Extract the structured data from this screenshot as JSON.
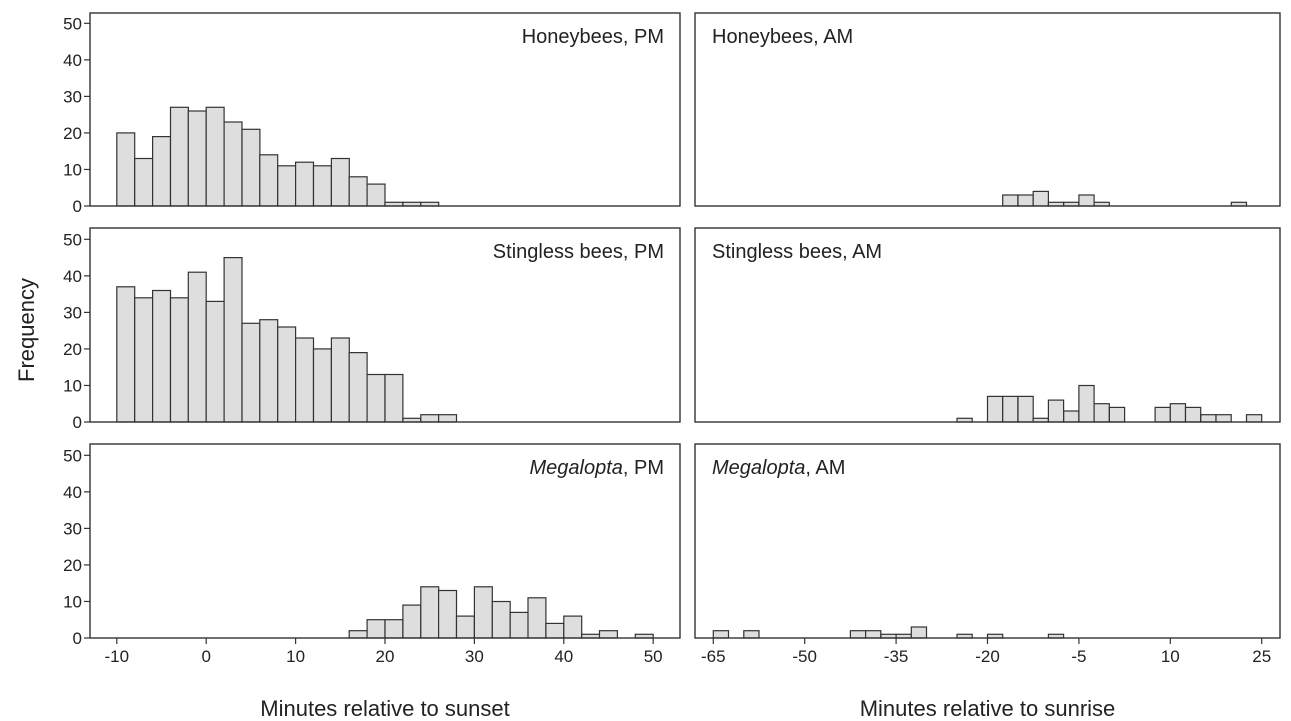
{
  "y_axis_title": "Frequency",
  "chart_data": [
    {
      "type": "bar",
      "label_parts": [
        "Honeybees, PM"
      ],
      "xlabel": "",
      "ylabel": "Frequency",
      "xlim": [
        -13,
        53
      ],
      "ylim": [
        0,
        52
      ],
      "bin_width": 2,
      "x": [
        -9,
        -7,
        -5,
        -3,
        -1,
        1,
        3,
        5,
        7,
        9,
        11,
        13,
        15,
        17,
        19,
        21,
        23,
        25
      ],
      "values": [
        20,
        13,
        19,
        27,
        26,
        27,
        23,
        21,
        14,
        11,
        12,
        11,
        13,
        8,
        6,
        1,
        1,
        1
      ],
      "yticks": [
        0,
        10,
        20,
        30,
        40,
        50
      ],
      "xticks": []
    },
    {
      "type": "bar",
      "label_parts": [
        "Honeybees, AM"
      ],
      "xlabel": "",
      "ylabel": "",
      "xlim": [
        -68,
        28
      ],
      "ylim": [
        0,
        52
      ],
      "bin_width": 2.5,
      "x": [
        -16.25,
        -13.75,
        -11.25,
        -8.75,
        -6.25,
        -3.75,
        -1.25,
        1.25,
        21.25
      ],
      "values": [
        3,
        3,
        4,
        1,
        1,
        3,
        1,
        0,
        1
      ],
      "yticks": [],
      "xticks": []
    },
    {
      "type": "bar",
      "label_parts": [
        "Stingless bees, PM"
      ],
      "xlabel": "",
      "ylabel": "Frequency",
      "xlim": [
        -13,
        53
      ],
      "ylim": [
        0,
        52
      ],
      "bin_width": 2,
      "x": [
        -9,
        -7,
        -5,
        -3,
        -1,
        1,
        3,
        5,
        7,
        9,
        11,
        13,
        15,
        17,
        19,
        21,
        23,
        25,
        27
      ],
      "values": [
        37,
        34,
        36,
        34,
        41,
        33,
        45,
        27,
        28,
        26,
        23,
        20,
        23,
        19,
        13,
        13,
        1,
        2,
        2
      ],
      "yticks": [
        0,
        10,
        20,
        30,
        40,
        50
      ],
      "xticks": []
    },
    {
      "type": "bar",
      "label_parts": [
        "Stingless bees, AM"
      ],
      "xlabel": "",
      "ylabel": "",
      "xlim": [
        -68,
        28
      ],
      "ylim": [
        0,
        52
      ],
      "bin_width": 2.5,
      "x": [
        -23.75,
        -18.75,
        -16.25,
        -13.75,
        -11.25,
        -8.75,
        -6.25,
        -3.75,
        -1.25,
        1.25,
        3.75,
        8.75,
        11.25,
        13.75,
        16.25,
        18.75,
        21.25,
        23.75
      ],
      "values": [
        1,
        7,
        7,
        7,
        1,
        6,
        3,
        10,
        5,
        4,
        0,
        4,
        5,
        4,
        2,
        2,
        0,
        2
      ],
      "yticks": [],
      "xticks": []
    },
    {
      "type": "bar",
      "label_parts": [
        "Megalopta",
        ", PM"
      ],
      "xlabel": "Minutes relative to sunset",
      "ylabel": "Frequency",
      "xlim": [
        -13,
        53
      ],
      "ylim": [
        0,
        52
      ],
      "bin_width": 2,
      "x": [
        17,
        19,
        21,
        23,
        25,
        27,
        29,
        31,
        33,
        35,
        37,
        39,
        41,
        43,
        45,
        49
      ],
      "values": [
        2,
        5,
        5,
        9,
        14,
        13,
        6,
        14,
        10,
        7,
        11,
        4,
        6,
        1,
        2,
        1
      ],
      "yticks": [
        0,
        10,
        20,
        30,
        40,
        50
      ],
      "xticks": [
        -10,
        0,
        10,
        20,
        30,
        40,
        50
      ]
    },
    {
      "type": "bar",
      "label_parts": [
        "Megalopta",
        ", AM"
      ],
      "xlabel": "Minutes relative to sunrise",
      "ylabel": "",
      "xlim": [
        -68,
        28
      ],
      "ylim": [
        0,
        52
      ],
      "bin_width": 2.5,
      "x": [
        -63.75,
        -58.75,
        -41.25,
        -38.75,
        -36.25,
        -33.75,
        -31.25,
        -26.25,
        -23.75,
        -18.75,
        -16.25,
        -13.75,
        -8.75
      ],
      "values": [
        2,
        2,
        2,
        2,
        1,
        1,
        3,
        0,
        1,
        1,
        0,
        0,
        1
      ],
      "yticks": [],
      "xticks": [
        -65,
        -50,
        -35,
        -20,
        -5,
        10,
        25
      ]
    }
  ]
}
